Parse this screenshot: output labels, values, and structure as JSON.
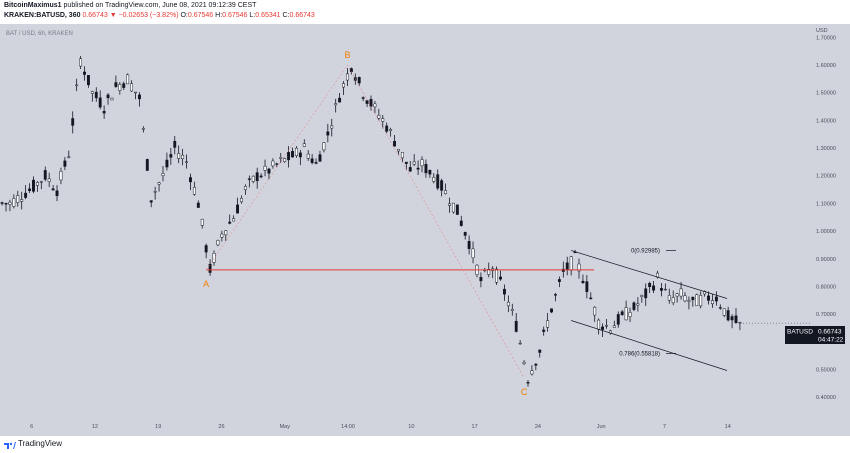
{
  "header": {
    "author": "BitcoinMaximus1",
    "published_text": "published on TradingView.com, June 08, 2021 09:12:39 CEST",
    "ticker": "KRAKEN:BATUSD, 360",
    "last_value": "0.66743",
    "change": "▼ −0.02653 (−3.82%)",
    "o_label": "O:",
    "o_value": "0.67546",
    "h_label": "H:",
    "h_value": "0.67546",
    "l_label": "L:",
    "l_value": "0.65341",
    "c_label": "C:",
    "c_value": "0.66743"
  },
  "symbol_legend": "BAT / USD, 6h, KRAKEN",
  "price_badge": {
    "symbol": "BATUSD",
    "price": "0.66743",
    "countdown": "04:47:22"
  },
  "footer": {
    "brand": "TradingView"
  },
  "colors": {
    "background": "#d1d4dc",
    "candle": "#131722",
    "support": "#e53935",
    "wave_label": "#f57c00"
  },
  "chart_data": {
    "type": "candlestick",
    "title": "BAT / USD, 6h, KRAKEN",
    "ylim": [
      0.35,
      1.73
    ],
    "y_ticks": [
      "USD",
      "1.70000",
      "1.60000",
      "1.50000",
      "1.40000",
      "1.30000",
      "1.20000",
      "1.10000",
      "1.00000",
      "0.90000",
      "0.80000",
      "0.70000",
      "0.60000",
      "0.50000",
      "0.40000"
    ],
    "x_ticks": [
      "6",
      "12",
      "19",
      "26",
      "May",
      "14:00",
      "10",
      "17",
      "24",
      "Jun",
      "7",
      "14"
    ],
    "close_series": [
      1.1,
      1.13,
      1.16,
      1.2,
      1.15,
      1.28,
      1.62,
      1.5,
      1.45,
      1.52,
      1.55,
      1.48,
      1.12,
      1.2,
      1.3,
      1.25,
      1.1,
      0.86,
      0.99,
      1.05,
      1.15,
      1.2,
      1.22,
      1.25,
      1.27,
      1.3,
      1.24,
      1.35,
      1.49,
      1.6,
      1.5,
      1.44,
      1.38,
      1.3,
      1.22,
      1.24,
      1.2,
      1.14,
      1.07,
      0.96,
      0.82,
      0.87,
      0.78,
      0.66,
      0.47,
      0.57,
      0.72,
      0.85,
      0.9,
      0.8,
      0.67,
      0.65,
      0.69,
      0.72,
      0.77,
      0.83,
      0.75,
      0.77,
      0.74,
      0.76,
      0.76,
      0.69,
      0.66
    ],
    "support_level": 0.86,
    "waves": [
      {
        "label": "A",
        "value": 0.86
      },
      {
        "label": "B",
        "value": 1.6
      },
      {
        "label": "C",
        "value": 0.47
      }
    ],
    "fib_levels": [
      {
        "label": "0(0.92985)",
        "value": 0.92985
      },
      {
        "label": "0.786(0.55818)",
        "value": 0.55818
      }
    ],
    "last_price": 0.66743
  }
}
